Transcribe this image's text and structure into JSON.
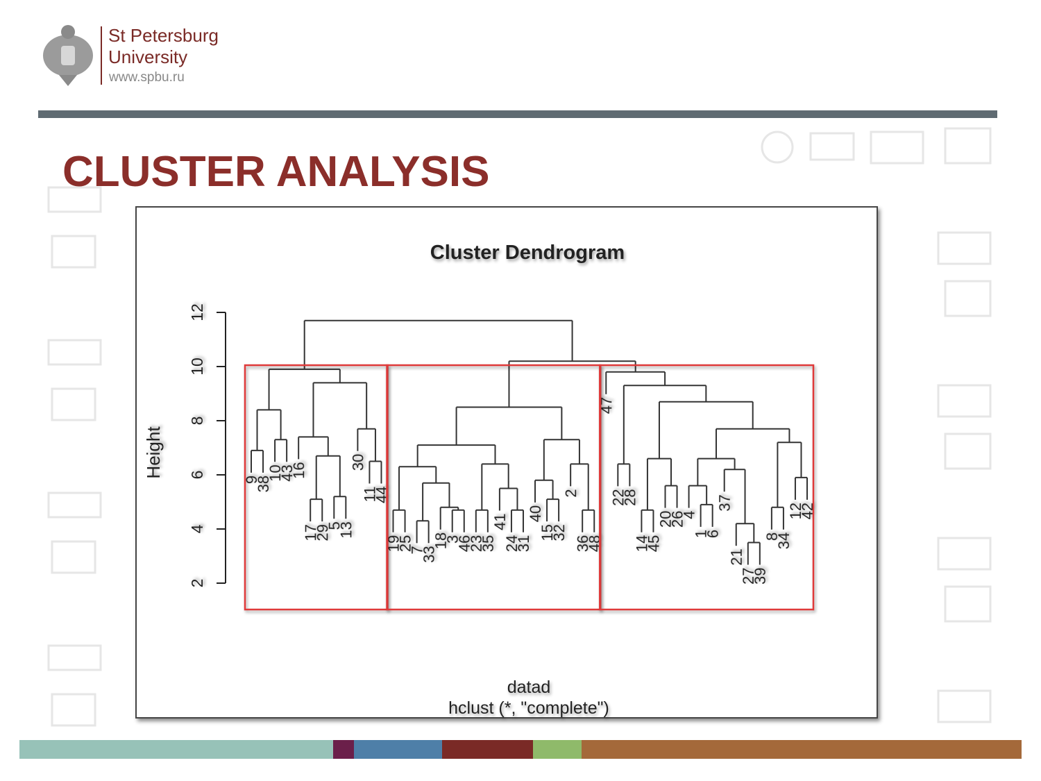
{
  "header": {
    "name_line1": "St Petersburg",
    "name_line2": "University",
    "url": "www.spbu.ru"
  },
  "slide": {
    "title": "CLUSTER ANALYSIS"
  },
  "chart_data": {
    "type": "dendrogram",
    "title": "Cluster Dendrogram",
    "y_label": "Height",
    "x_label": "datad",
    "subtitle": "hclust (*, \"complete\")",
    "ylim": [
      2,
      12
    ],
    "yticks": [
      2,
      4,
      6,
      8,
      10,
      12
    ],
    "color": "#333333",
    "k": 3,
    "rect_color": "#e03a3a",
    "tree": {
      "height": 11.7,
      "children": [
        {
          "height": 9.9,
          "children": [
            {
              "height": 8.4,
              "children": [
                {
                  "height": 6.9,
                  "children": [
                    {
                      "label": "9"
                    },
                    {
                      "label": "38"
                    }
                  ]
                },
                {
                  "height": 7.3,
                  "children": [
                    {
                      "label": "10"
                    },
                    {
                      "label": "43"
                    }
                  ]
                }
              ]
            },
            {
              "height": 9.4,
              "children": [
                {
                  "height": 7.4,
                  "children": [
                    {
                      "label": "16"
                    },
                    {
                      "height": 6.7,
                      "children": [
                        {
                          "height": 5.1,
                          "children": [
                            {
                              "label": "17"
                            },
                            {
                              "label": "29"
                            }
                          ]
                        },
                        {
                          "height": 5.2,
                          "children": [
                            {
                              "label": "5"
                            },
                            {
                              "label": "13"
                            }
                          ]
                        }
                      ]
                    }
                  ]
                },
                {
                  "height": 7.7,
                  "children": [
                    {
                      "label": "30"
                    },
                    {
                      "height": 6.5,
                      "children": [
                        {
                          "label": "11"
                        },
                        {
                          "label": "44"
                        }
                      ]
                    }
                  ]
                }
              ]
            }
          ]
        },
        {
          "height": 10.2,
          "children": [
            {
              "height": 8.5,
              "children": [
                {
                  "height": 7.1,
                  "children": [
                    {
                      "height": 6.3,
                      "children": [
                        {
                          "height": 4.7,
                          "children": [
                            {
                              "label": "19"
                            },
                            {
                              "label": "25"
                            }
                          ]
                        },
                        {
                          "height": 5.7,
                          "children": [
                            {
                              "height": 4.3,
                              "children": [
                                {
                                  "label": "7"
                                },
                                {
                                  "label": "33"
                                }
                              ]
                            },
                            {
                              "height": 4.8,
                              "children": [
                                {
                                  "label": "18"
                                },
                                {
                                  "height": 4.7,
                                  "children": [
                                    {
                                      "label": "3"
                                    },
                                    {
                                      "label": "46"
                                    }
                                  ]
                                }
                              ]
                            }
                          ]
                        }
                      ]
                    },
                    {
                      "height": 6.4,
                      "children": [
                        {
                          "height": 4.7,
                          "children": [
                            {
                              "label": "23"
                            },
                            {
                              "label": "35"
                            }
                          ]
                        },
                        {
                          "height": 5.5,
                          "children": [
                            {
                              "label": "41"
                            },
                            {
                              "height": 4.7,
                              "children": [
                                {
                                  "label": "24"
                                },
                                {
                                  "label": "31"
                                }
                              ]
                            }
                          ]
                        }
                      ]
                    }
                  ]
                },
                {
                  "height": 7.3,
                  "children": [
                    {
                      "height": 5.8,
                      "children": [
                        {
                          "label": "40"
                        },
                        {
                          "height": 5.1,
                          "children": [
                            {
                              "label": "15"
                            },
                            {
                              "label": "32"
                            }
                          ]
                        }
                      ]
                    },
                    {
                      "height": 6.4,
                      "children": [
                        {
                          "label": "2"
                        },
                        {
                          "height": 4.7,
                          "children": [
                            {
                              "label": "36"
                            },
                            {
                              "label": "48"
                            }
                          ]
                        }
                      ]
                    }
                  ]
                }
              ]
            },
            {
              "height": 9.8,
              "children": [
                {
                  "label": "47"
                },
                {
                  "height": 9.3,
                  "children": [
                    {
                      "height": 6.4,
                      "children": [
                        {
                          "label": "22"
                        },
                        {
                          "label": "28"
                        }
                      ]
                    },
                    {
                      "height": 8.7,
                      "children": [
                        {
                          "height": 6.6,
                          "children": [
                            {
                              "height": 4.7,
                              "children": [
                                {
                                  "label": "14"
                                },
                                {
                                  "label": "45"
                                }
                              ]
                            },
                            {
                              "height": 5.6,
                              "children": [
                                {
                                  "label": "20"
                                },
                                {
                                  "label": "26"
                                }
                              ]
                            }
                          ]
                        },
                        {
                          "height": 7.7,
                          "children": [
                            {
                              "height": 6.6,
                              "children": [
                                {
                                  "height": 5.6,
                                  "children": [
                                    {
                                      "label": "4"
                                    },
                                    {
                                      "height": 4.9,
                                      "children": [
                                        {
                                          "label": "1"
                                        },
                                        {
                                          "label": "6"
                                        }
                                      ]
                                    }
                                  ]
                                },
                                {
                                  "height": 6.2,
                                  "children": [
                                    {
                                      "label": "37"
                                    },
                                    {
                                      "height": 4.2,
                                      "children": [
                                        {
                                          "label": "21"
                                        },
                                        {
                                          "height": 3.5,
                                          "children": [
                                            {
                                              "label": "27"
                                            },
                                            {
                                              "label": "39"
                                            }
                                          ]
                                        }
                                      ]
                                    }
                                  ]
                                }
                              ]
                            },
                            {
                              "height": 7.2,
                              "children": [
                                {
                                  "height": 4.8,
                                  "children": [
                                    {
                                      "label": "8"
                                    },
                                    {
                                      "label": "34"
                                    }
                                  ]
                                },
                                {
                                  "height": 5.9,
                                  "children": [
                                    {
                                      "label": "12"
                                    },
                                    {
                                      "label": "42"
                                    }
                                  ]
                                }
                              ]
                            }
                          ]
                        }
                      ]
                    }
                  ]
                }
              ]
            }
          ]
        }
      ]
    }
  }
}
